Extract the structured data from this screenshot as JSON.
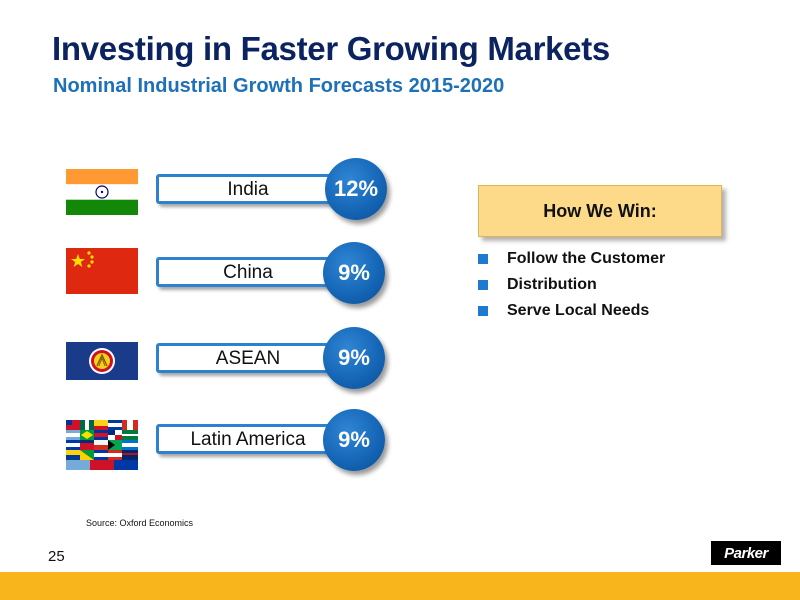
{
  "slide": {
    "title": "Investing in Faster Growing Markets",
    "subtitle": "Nominal Industrial Growth Forecasts 2015-2020"
  },
  "regions": [
    {
      "name": "India",
      "growth": "12%",
      "flag": "india-flag-icon"
    },
    {
      "name": "China",
      "growth": "9%",
      "flag": "china-flag-icon"
    },
    {
      "name": "ASEAN",
      "growth": "9%",
      "flag": "asean-flag-icon"
    },
    {
      "name": "Latin America",
      "growth": "9%",
      "flag": "latin-america-flags-icon"
    }
  ],
  "how_we_win": {
    "title": "How We Win:",
    "items": [
      "Follow the Customer",
      "Distribution",
      "Serve Local Needs"
    ]
  },
  "footer": {
    "source": "Source: Oxford Economics",
    "page_number": "25",
    "logo_text": "Parker"
  },
  "colors": {
    "title": "#0b2361",
    "subtitle": "#1e71b8",
    "badge": "#1464b4",
    "box_border": "#2d82cf",
    "win_box": "#fdd98a",
    "footer_bar": "#f8b61c"
  }
}
